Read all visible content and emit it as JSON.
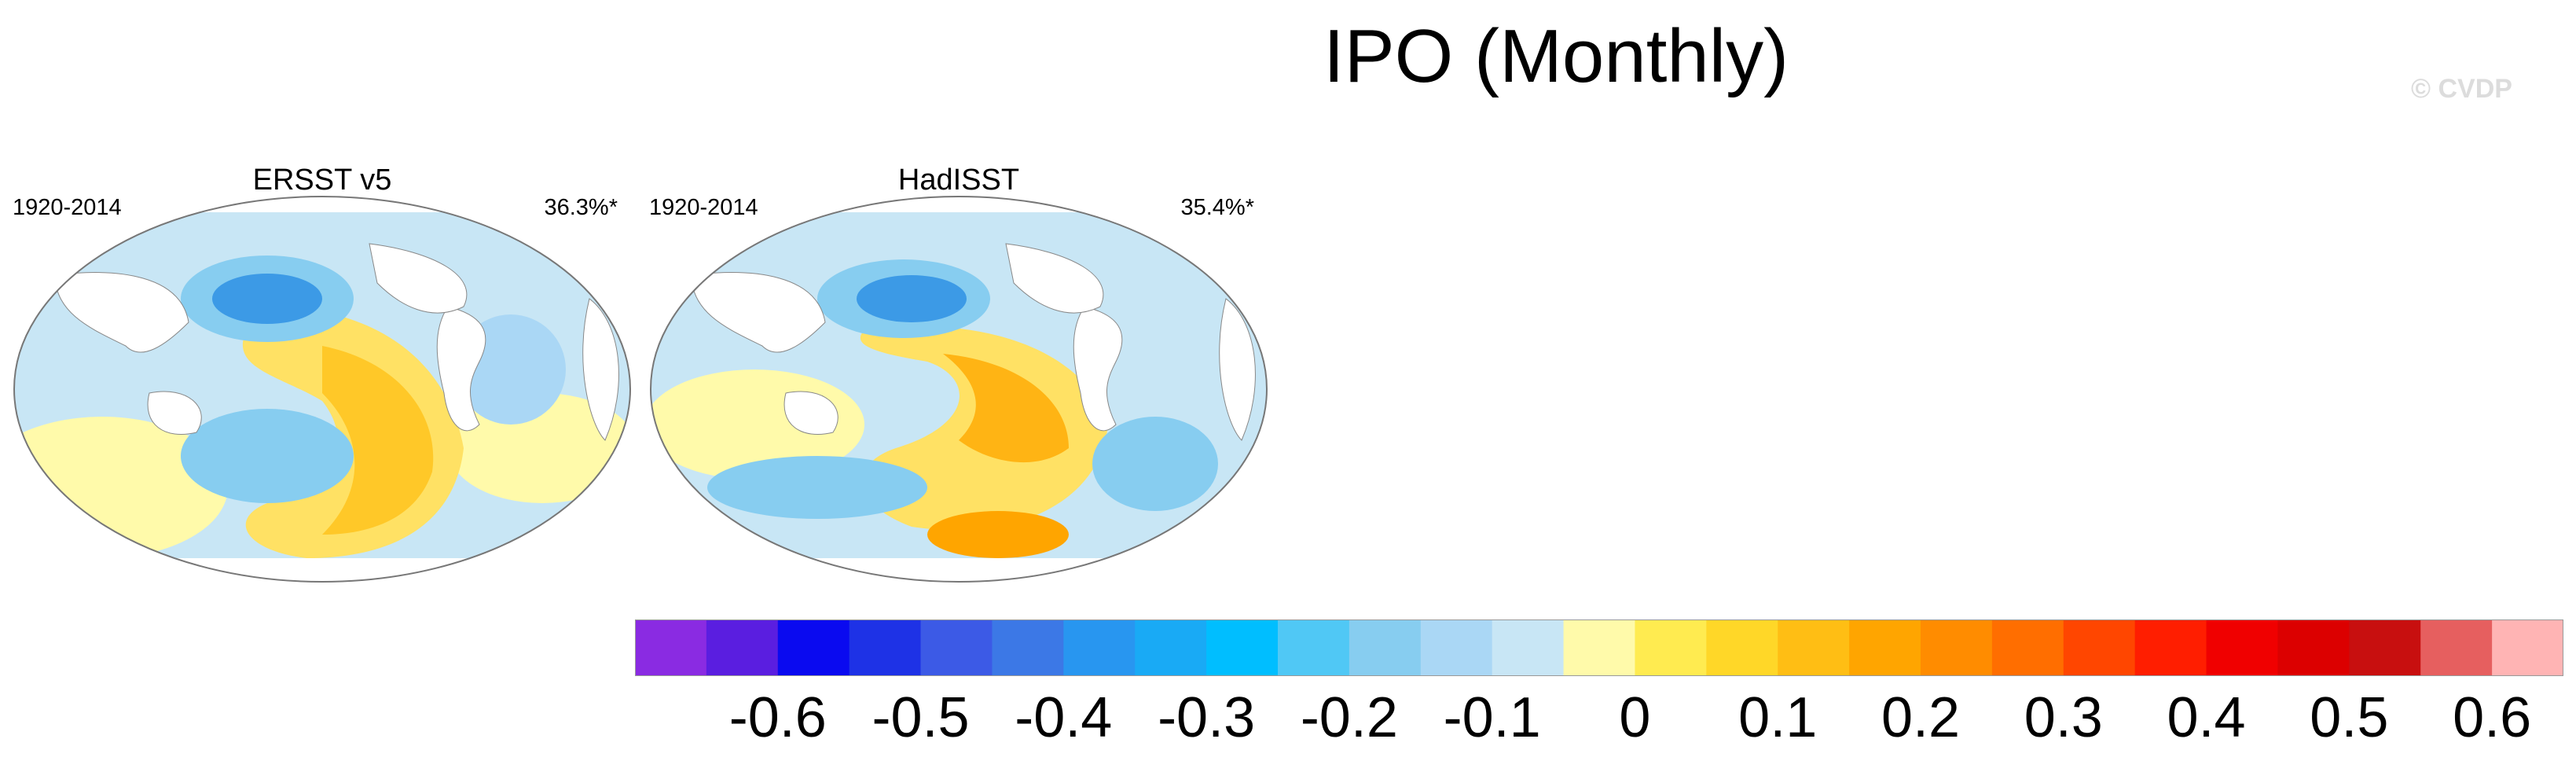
{
  "title": "IPO (Monthly)",
  "credit": "© CVDP",
  "panels": [
    {
      "title": "ERSST v5",
      "years": "1920-2014",
      "variance": "36.3%*"
    },
    {
      "title": "HadISST",
      "years": "1920-2014",
      "variance": "35.4%*"
    }
  ],
  "colorbar": {
    "colors": [
      "#8a2be2",
      "#5a1ee0",
      "#0a0af0",
      "#1e32e6",
      "#3c5ae6",
      "#3c78e6",
      "#2896f0",
      "#19aaf5",
      "#00beff",
      "#50c8f5",
      "#87cdf0",
      "#aad7f5",
      "#c8e6f5",
      "#fffaaa",
      "#ffeb50",
      "#ffd728",
      "#ffbe14",
      "#ffa500",
      "#ff8c00",
      "#ff6e00",
      "#ff4600",
      "#ff1e00",
      "#f00000",
      "#dc0000",
      "#c80f0f",
      "#e65f5f",
      "#ffb4b4"
    ],
    "labels": [
      "-0.6",
      "-0.5",
      "-0.4",
      "-0.3",
      "-0.2",
      "-0.1",
      "0",
      "0.1",
      "0.2",
      "0.3",
      "0.4",
      "0.5",
      "0.6"
    ],
    "label_boundary_index": [
      2,
      4,
      6,
      8,
      10,
      12,
      14,
      16,
      18,
      20,
      22,
      24,
      26
    ]
  }
}
